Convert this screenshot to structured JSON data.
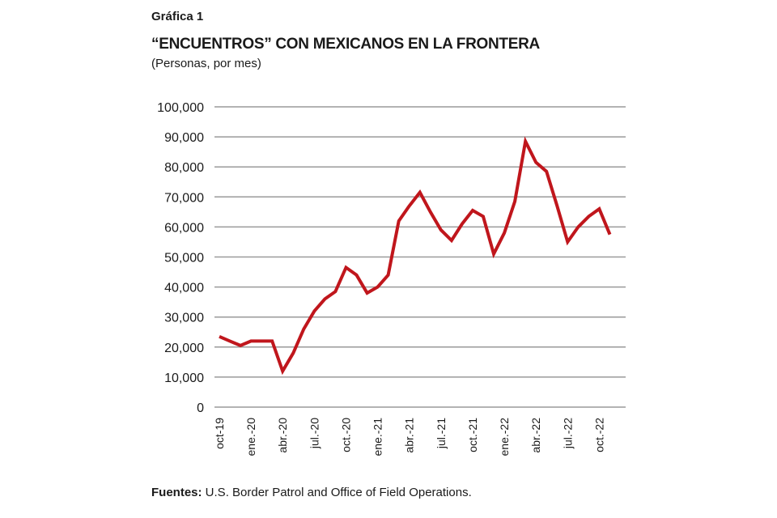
{
  "kicker": "Gráfica 1",
  "chart_data": {
    "type": "line",
    "title": "“ENCUENTROS” CON MEXICANOS EN LA FRONTERA",
    "subtitle": "(Personas, por mes)",
    "ylim": [
      0,
      100000
    ],
    "yticks": [
      0,
      10000,
      20000,
      30000,
      40000,
      50000,
      60000,
      70000,
      80000,
      90000,
      100000
    ],
    "ytick_labels": [
      "0",
      "10,000",
      "20,000",
      "30,000",
      "40,000",
      "50,000",
      "60,000",
      "70,000",
      "80,000",
      "90,000",
      "100,000"
    ],
    "grid": true,
    "line_color": "#c0161c",
    "x": [
      "oct-19",
      "nov-19",
      "dic-19",
      "ene-20",
      "feb-20",
      "mar-20",
      "abr-20",
      "may-20",
      "jun-20",
      "jul-20",
      "ago-20",
      "sep-20",
      "oct-20",
      "nov-20",
      "dic-20",
      "ene-21",
      "feb-21",
      "mar-21",
      "abr-21",
      "may-21",
      "jun-21",
      "jul-21",
      "ago-21",
      "sep-21",
      "oct-21",
      "nov-21",
      "dic-21",
      "ene-22",
      "feb-22",
      "mar-22",
      "abr-22",
      "may-22",
      "jun-22",
      "jul-22",
      "ago-22",
      "sep-22",
      "oct-22",
      "nov-22"
    ],
    "xtick_labels": [
      "oct-19",
      "ene.-20",
      "abr.-20",
      "jul.-20",
      "oct.-20",
      "ene.-21",
      "abr.-21",
      "jul.-21",
      "oct.-21",
      "ene.-22",
      "abr.-22",
      "jul.-22",
      "oct.-22"
    ],
    "values": [
      23500,
      22000,
      20500,
      22000,
      22000,
      22000,
      12000,
      18000,
      26000,
      32000,
      36000,
      38500,
      46500,
      44000,
      38000,
      40000,
      44000,
      62000,
      67000,
      71500,
      65000,
      59000,
      55500,
      61000,
      65500,
      63500,
      51000,
      58000,
      68500,
      88500,
      81500,
      78500,
      67000,
      55000,
      60000,
      63500,
      66000,
      57500
    ]
  },
  "source": {
    "label": "Fuentes:",
    "text": " U.S. Border Patrol and Office of Field Operations."
  }
}
